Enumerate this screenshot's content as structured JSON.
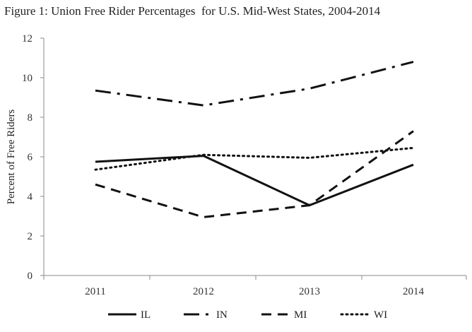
{
  "title": "Figure 1: Union Free Rider Percentages  for U.S. Mid-West States, 2004-2014",
  "chart_data": {
    "type": "line",
    "title": "Figure 1: Union Free Rider Percentages  for U.S. Mid-West States, 2004-2014",
    "xlabel": "",
    "ylabel": "Percent of Free Riders",
    "categories": [
      "2011",
      "2012",
      "2013",
      "2014"
    ],
    "ylim": [
      0,
      12
    ],
    "yticks": [
      0,
      2,
      4,
      6,
      8,
      10,
      12
    ],
    "grid": false,
    "legend_position": "bottom",
    "series": [
      {
        "name": "IL",
        "style": "solid",
        "values": [
          5.75,
          6.05,
          3.55,
          5.6
        ]
      },
      {
        "name": "IN",
        "style": "dash-dot",
        "values": [
          9.35,
          8.6,
          9.45,
          10.8
        ]
      },
      {
        "name": "MI",
        "style": "dashed",
        "values": [
          4.6,
          2.95,
          3.55,
          7.3
        ]
      },
      {
        "name": "WI",
        "style": "dotted",
        "values": [
          5.35,
          6.1,
          5.95,
          6.45
        ]
      }
    ]
  }
}
